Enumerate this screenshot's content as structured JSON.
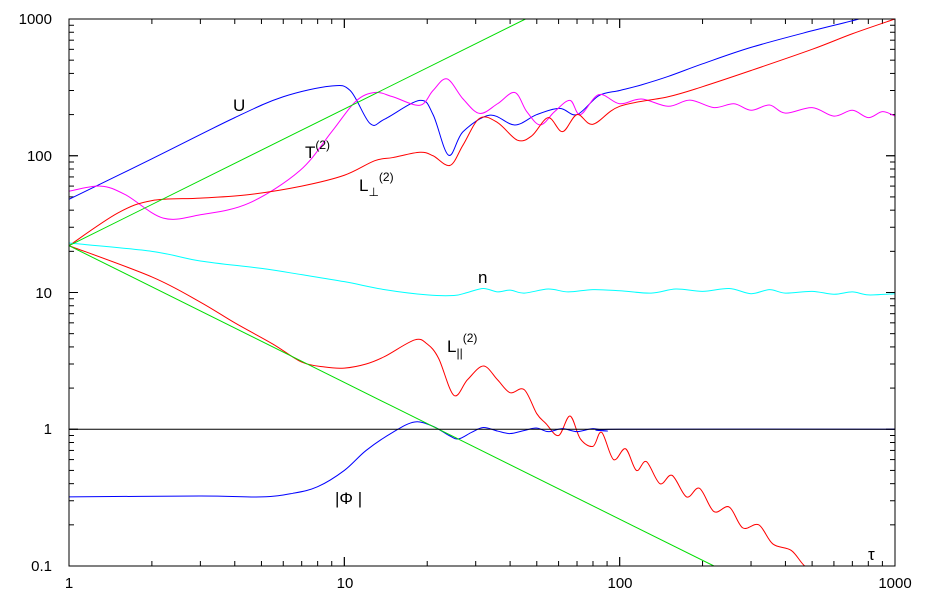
{
  "chart_data": {
    "type": "line",
    "title": "",
    "xlabel": "τ",
    "ylabel": "",
    "xscale": "log",
    "yscale": "log",
    "xlim": [
      1,
      1000
    ],
    "ylim": [
      0.1,
      1000
    ],
    "grid": false,
    "legend": "none",
    "x_ticks": [
      "1",
      "10",
      "100",
      "1000"
    ],
    "y_ticks": [
      "0.1",
      "1",
      "10",
      "100",
      "1000"
    ],
    "annotations": {
      "U": "U",
      "T_main": "T",
      "T_sup": "(2)",
      "Lperp_main": "L",
      "Lperp_sub": "⊥",
      "Lperp_sup": "(2)",
      "n": "n",
      "Lpar_main": "L",
      "Lpar_sub": "||",
      "Lpar_sup": "(2)",
      "Phi": "|Φ |"
    },
    "series": [
      {
        "id": "U",
        "color": "#0000ff",
        "points": [
          [
            1,
            48
          ],
          [
            2,
            95
          ],
          [
            4,
            190
          ],
          [
            6,
            270
          ],
          [
            8.9,
            323
          ],
          [
            10.5,
            300
          ],
          [
            12.4,
            172
          ],
          [
            14,
            185
          ],
          [
            18.8,
            254
          ],
          [
            21,
            200
          ],
          [
            23.9,
            101
          ],
          [
            27,
            150
          ],
          [
            33.8,
            198
          ],
          [
            41.6,
            168
          ],
          [
            50,
            200
          ],
          [
            60.6,
            222
          ],
          [
            70,
            200
          ],
          [
            84,
            275
          ],
          [
            100,
            300
          ],
          [
            120,
            330
          ],
          [
            150,
            380
          ],
          [
            200,
            470
          ],
          [
            300,
            620
          ],
          [
            500,
            820
          ],
          [
            740,
            1000
          ],
          [
            1000,
            1200
          ]
        ]
      },
      {
        "id": "T2",
        "color": "#ff00ff",
        "points": [
          [
            1,
            55
          ],
          [
            1.3,
            60
          ],
          [
            1.6,
            52
          ],
          [
            2.2,
            35
          ],
          [
            3,
            37
          ],
          [
            4.5,
            45
          ],
          [
            6.9,
            78
          ],
          [
            9,
            150
          ],
          [
            11,
            250
          ],
          [
            12.9,
            290
          ],
          [
            15,
            270
          ],
          [
            18.8,
            234
          ],
          [
            21,
            300
          ],
          [
            23.6,
            365
          ],
          [
            27,
            260
          ],
          [
            31,
            204
          ],
          [
            36,
            240
          ],
          [
            41.6,
            290
          ],
          [
            46,
            210
          ],
          [
            51.5,
            168
          ],
          [
            58,
            210
          ],
          [
            66,
            254
          ],
          [
            72,
            200
          ],
          [
            84,
            280
          ],
          [
            100,
            240
          ],
          [
            120,
            260
          ],
          [
            150,
            230
          ],
          [
            180,
            255
          ],
          [
            220,
            225
          ],
          [
            260,
            240
          ],
          [
            300,
            215
          ],
          [
            350,
            235
          ],
          [
            400,
            205
          ],
          [
            500,
            225
          ],
          [
            600,
            195
          ],
          [
            700,
            215
          ],
          [
            800,
            190
          ],
          [
            900,
            210
          ],
          [
            1000,
            195
          ]
        ]
      },
      {
        "id": "Lperp2",
        "color": "#ff0000",
        "points": [
          [
            1,
            22
          ],
          [
            1.5,
            38
          ],
          [
            2,
            47
          ],
          [
            3,
            49
          ],
          [
            4.5,
            52
          ],
          [
            7,
            60
          ],
          [
            10,
            72
          ],
          [
            12.9,
            92
          ],
          [
            15,
            97
          ],
          [
            18.8,
            106
          ],
          [
            21,
            100
          ],
          [
            24.2,
            85
          ],
          [
            27,
            120
          ],
          [
            31,
            188
          ],
          [
            36,
            175
          ],
          [
            42.5,
            130
          ],
          [
            48,
            140
          ],
          [
            55,
            190
          ],
          [
            62,
            150
          ],
          [
            70,
            200
          ],
          [
            80,
            170
          ],
          [
            100,
            230
          ],
          [
            150,
            270
          ],
          [
            200,
            320
          ],
          [
            300,
            420
          ],
          [
            500,
            600
          ],
          [
            700,
            780
          ],
          [
            1000,
            1000
          ]
        ]
      },
      {
        "id": "n",
        "color": "#00ffff",
        "points": [
          [
            1,
            23
          ],
          [
            2,
            20
          ],
          [
            3,
            17
          ],
          [
            5,
            15
          ],
          [
            7,
            13.5
          ],
          [
            10,
            12
          ],
          [
            14,
            10.5
          ],
          [
            20,
            9.6
          ],
          [
            25,
            9.5
          ],
          [
            28,
            10
          ],
          [
            32,
            10.7
          ],
          [
            36,
            10.1
          ],
          [
            40,
            10.4
          ],
          [
            45,
            9.9
          ],
          [
            55,
            10.6
          ],
          [
            65,
            10.1
          ],
          [
            80,
            10.5
          ],
          [
            100,
            10.3
          ],
          [
            130,
            9.9
          ],
          [
            160,
            10.6
          ],
          [
            200,
            10.2
          ],
          [
            250,
            10.7
          ],
          [
            300,
            9.8
          ],
          [
            350,
            10.5
          ],
          [
            400,
            9.9
          ],
          [
            500,
            10.2
          ],
          [
            600,
            9.7
          ],
          [
            700,
            10.1
          ],
          [
            800,
            9.6
          ],
          [
            1000,
            9.8
          ]
        ]
      },
      {
        "id": "Lpar2",
        "color": "#ff0000",
        "points": [
          [
            1,
            22
          ],
          [
            2,
            13
          ],
          [
            3,
            8.5
          ],
          [
            4,
            6
          ],
          [
            5.5,
            4.2
          ],
          [
            7,
            3.1
          ],
          [
            8.5,
            2.85
          ],
          [
            10,
            2.8
          ],
          [
            12,
            3.0
          ],
          [
            14,
            3.4
          ],
          [
            18,
            4.5
          ],
          [
            20,
            4.2
          ],
          [
            22,
            3.3
          ],
          [
            25,
            1.77
          ],
          [
            28,
            2.3
          ],
          [
            32,
            2.9
          ],
          [
            36,
            2.3
          ],
          [
            40,
            1.85
          ],
          [
            45,
            1.95
          ],
          [
            50,
            1.3
          ],
          [
            54,
            1.1
          ],
          [
            60,
            0.9
          ],
          [
            66,
            1.25
          ],
          [
            72,
            0.85
          ],
          [
            80,
            0.75
          ],
          [
            86,
            0.95
          ],
          [
            95,
            0.6
          ],
          [
            105,
            0.72
          ],
          [
            115,
            0.5
          ],
          [
            125,
            0.58
          ],
          [
            140,
            0.4
          ],
          [
            155,
            0.46
          ],
          [
            175,
            0.32
          ],
          [
            195,
            0.37
          ],
          [
            220,
            0.25
          ],
          [
            250,
            0.27
          ],
          [
            280,
            0.19
          ],
          [
            320,
            0.2
          ],
          [
            360,
            0.145
          ],
          [
            420,
            0.13
          ],
          [
            470,
            0.1
          ],
          [
            540,
            0.085
          ]
        ]
      },
      {
        "id": "Phi",
        "color": "#0000ff",
        "points": [
          [
            1,
            0.32
          ],
          [
            3,
            0.325
          ],
          [
            5,
            0.32
          ],
          [
            6.5,
            0.34
          ],
          [
            8,
            0.38
          ],
          [
            10,
            0.5
          ],
          [
            12,
            0.7
          ],
          [
            15,
            0.95
          ],
          [
            18,
            1.13
          ],
          [
            21,
            1.05
          ],
          [
            24,
            0.9
          ],
          [
            26,
            0.85
          ],
          [
            29,
            0.95
          ],
          [
            32,
            1.03
          ],
          [
            36,
            0.97
          ],
          [
            40,
            0.93
          ],
          [
            45,
            0.98
          ],
          [
            50,
            1.02
          ],
          [
            55,
            0.96
          ],
          [
            62,
            1.01
          ],
          [
            70,
            0.96
          ],
          [
            80,
            1.01
          ],
          [
            90,
            0.97
          ],
          [
            100,
            1.0
          ],
          [
            1000,
            1.0
          ]
        ]
      },
      {
        "id": "green_up",
        "color": "#00dd00",
        "points": [
          [
            1,
            22
          ],
          [
            45.5,
            1000
          ]
        ]
      },
      {
        "id": "green_down",
        "color": "#00dd00",
        "points": [
          [
            1,
            22
          ],
          [
            220,
            0.1
          ]
        ]
      },
      {
        "id": "unity",
        "color": "#000000",
        "points": [
          [
            1,
            1
          ],
          [
            1000,
            1
          ]
        ]
      }
    ]
  }
}
